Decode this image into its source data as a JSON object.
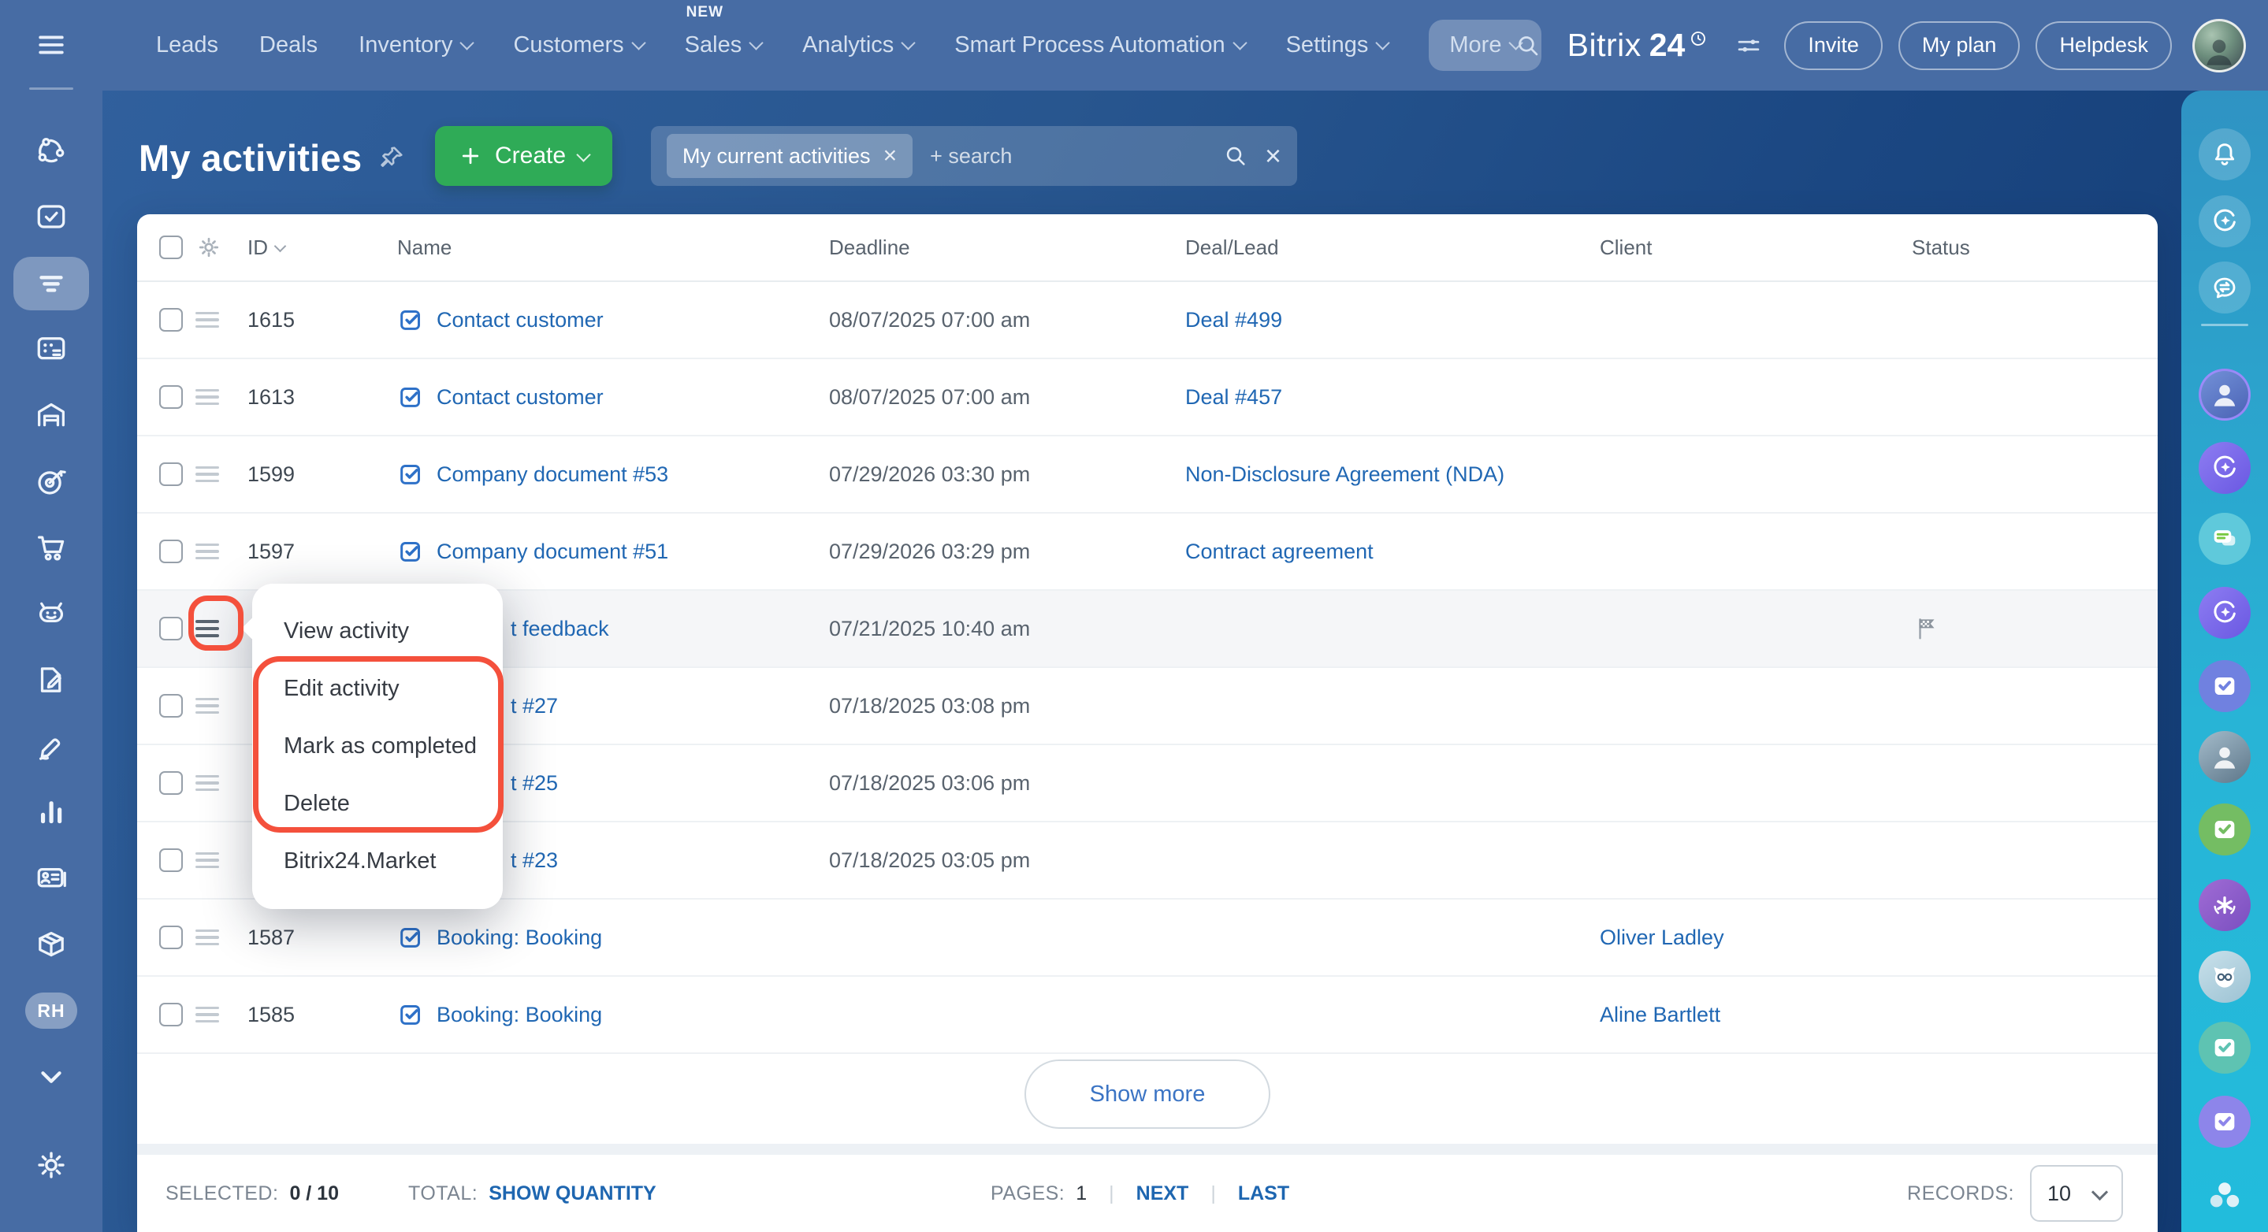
{
  "app": {
    "logo_part1": "Bitrix",
    "logo_part2": "24"
  },
  "colors": {
    "topbar_blue": "#476ca4",
    "main_bg": "#1b4782",
    "accent_green": "#2fab57",
    "link_blue": "#2067b3",
    "annotation_red": "#f4503c",
    "right_rail_teal": "#28b4d6",
    "row_highlight": "#f5f6f8"
  },
  "topnav": {
    "items": [
      {
        "label": "Leads",
        "caret": false,
        "badge": "",
        "highlighted": false
      },
      {
        "label": "Deals",
        "caret": false,
        "badge": "",
        "highlighted": false
      },
      {
        "label": "Inventory",
        "caret": true,
        "badge": "",
        "highlighted": false
      },
      {
        "label": "Customers",
        "caret": true,
        "badge": "",
        "highlighted": false
      },
      {
        "label": "Sales",
        "caret": true,
        "badge": "NEW",
        "highlighted": false
      },
      {
        "label": "Analytics",
        "caret": true,
        "badge": "",
        "highlighted": false
      },
      {
        "label": "Smart Process Automation",
        "caret": true,
        "badge": "",
        "highlighted": false
      },
      {
        "label": "Settings",
        "caret": true,
        "badge": "",
        "highlighted": false
      },
      {
        "label": "More",
        "caret": true,
        "badge": "",
        "highlighted": true
      }
    ],
    "action_buttons": [
      {
        "label": "Invite"
      },
      {
        "label": "My plan"
      },
      {
        "label": "Helpdesk"
      }
    ]
  },
  "page_header": {
    "title": "My activities",
    "create_label": "Create",
    "filter_chip": "My current activities",
    "search_placeholder": "+ search"
  },
  "table": {
    "columns": [
      "ID",
      "Name",
      "Deadline",
      "Deal/Lead",
      "Client",
      "Status"
    ],
    "rows": [
      {
        "id": "1615",
        "name": "Contact customer",
        "deadline": "08/07/2025 07:00 am",
        "deal": "Deal #499",
        "client": "",
        "status": "",
        "obscured": false,
        "highlighted": false,
        "menu_open": false
      },
      {
        "id": "1613",
        "name": "Contact customer",
        "deadline": "08/07/2025 07:00 am",
        "deal": "Deal #457",
        "client": "",
        "status": "",
        "obscured": false,
        "highlighted": false,
        "menu_open": false
      },
      {
        "id": "1599",
        "name": "Company document #53",
        "deadline": "07/29/2026 03:30 pm",
        "deal": "Non-Disclosure Agreement (NDA)",
        "client": "",
        "status": "",
        "obscured": false,
        "highlighted": false,
        "menu_open": false
      },
      {
        "id": "1597",
        "name": "Company document #51",
        "deadline": "07/29/2026 03:29 pm",
        "deal": "Contract agreement",
        "client": "",
        "status": "",
        "obscured": false,
        "highlighted": false,
        "menu_open": false
      },
      {
        "id": "",
        "name": "t feedback",
        "deadline": "07/21/2025 10:40 am",
        "deal": "",
        "client": "",
        "status": "flag",
        "obscured": true,
        "highlighted": true,
        "menu_open": true
      },
      {
        "id": "",
        "name": "t #27",
        "deadline": "07/18/2025 03:08 pm",
        "deal": "",
        "client": "",
        "status": "",
        "obscured": true,
        "highlighted": false,
        "menu_open": false
      },
      {
        "id": "",
        "name": "t #25",
        "deadline": "07/18/2025 03:06 pm",
        "deal": "",
        "client": "",
        "status": "",
        "obscured": true,
        "highlighted": false,
        "menu_open": false
      },
      {
        "id": "",
        "name": "t #23",
        "deadline": "07/18/2025 03:05 pm",
        "deal": "",
        "client": "",
        "status": "",
        "obscured": true,
        "highlighted": false,
        "menu_open": false
      },
      {
        "id": "1587",
        "name": "Booking: Booking",
        "deadline": "",
        "deal": "",
        "client": "Oliver Ladley",
        "status": "",
        "obscured": false,
        "highlighted": false,
        "menu_open": false
      },
      {
        "id": "1585",
        "name": "Booking: Booking",
        "deadline": "",
        "deal": "",
        "client": "Aline Bartlett",
        "status": "",
        "obscured": false,
        "highlighted": false,
        "menu_open": false
      }
    ]
  },
  "context_menu": {
    "items": [
      "View activity",
      "Edit activity",
      "Mark as completed",
      "Delete",
      "Bitrix24.Market"
    ]
  },
  "show_more_label": "Show more",
  "footer": {
    "selected_label": "SELECTED:",
    "selected_value": "0 / 10",
    "total_label": "TOTAL:",
    "total_link": "SHOW QUANTITY",
    "pages_label": "PAGES:",
    "page_current": "1",
    "next_label": "NEXT",
    "last_label": "LAST",
    "records_label": "RECORDS:",
    "records_value": "10"
  },
  "left_rail": {
    "icons": [
      "share-network",
      "tasks",
      "activities-filter",
      "calendar",
      "warehouse",
      "target",
      "shopping-cart",
      "ai-robot",
      "document-edit",
      "e-signature",
      "bar-chart",
      "contact-card",
      "package",
      "user-badge",
      "chevron-down",
      "settings-gear"
    ],
    "active_icon": "activities-filter",
    "user_badge": "RH"
  },
  "right_rail": {
    "icons": [
      "bell",
      "copilot",
      "messenger",
      "divider",
      "avatar-girl",
      "copilot-purple",
      "chat-bubbles",
      "copilot-purple-2",
      "task-monitor-blue",
      "avatar-man",
      "task-monitor-green",
      "ai-headset",
      "avatar-cat",
      "task-monitor-teal",
      "task-monitor-purple",
      "team-avatars"
    ]
  }
}
